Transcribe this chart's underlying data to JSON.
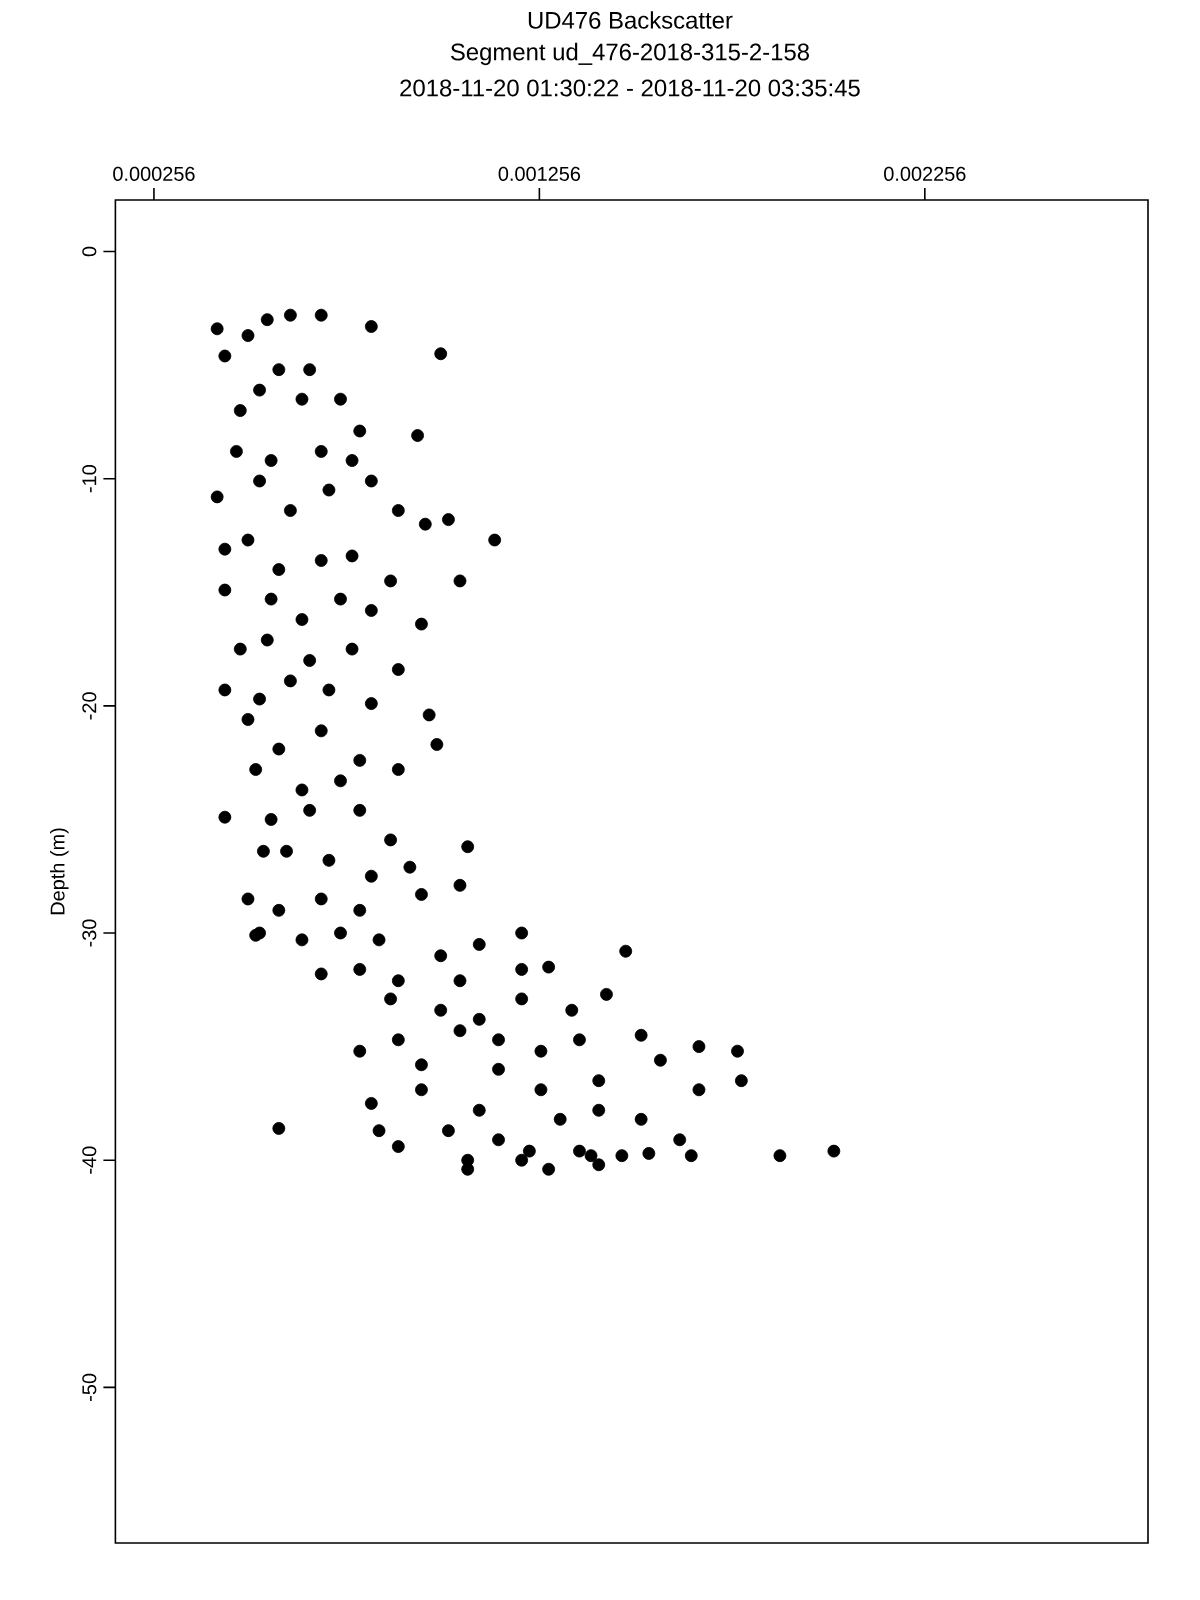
{
  "chart_data": {
    "type": "scatter",
    "title": "UD476 Backscatter",
    "subtitle": "Segment ud_476-2018-315-2-158",
    "annotations": [
      "2018-11-20 01:30:22 - 2018-11-20 03:35:45"
    ],
    "ylabel": "Depth (m)",
    "color": "#000000",
    "marker": "circle",
    "xlim": [
      0.000156,
      0.002835
    ],
    "ylim": [
      -56.85,
      2.27
    ],
    "xticks": [
      0.000256,
      0.001256,
      0.002256
    ],
    "yticks": [
      0,
      -10,
      -20,
      -30,
      -40,
      -50
    ],
    "x": [
      0.00042,
      0.00044,
      0.0005,
      0.00055,
      0.00061,
      0.00069,
      0.00082,
      0.001,
      0.00058,
      0.00066,
      0.00048,
      0.00053,
      0.00064,
      0.00074,
      0.00079,
      0.00094,
      0.00047,
      0.00056,
      0.00069,
      0.00077,
      0.00042,
      0.00053,
      0.00061,
      0.00071,
      0.00082,
      0.00089,
      0.00102,
      0.00114,
      0.00096,
      0.00044,
      0.0005,
      0.00058,
      0.00069,
      0.00077,
      0.00087,
      0.00105,
      0.00044,
      0.00056,
      0.00064,
      0.00074,
      0.00082,
      0.00095,
      0.00048,
      0.00055,
      0.00066,
      0.00077,
      0.00089,
      0.00044,
      0.00053,
      0.00061,
      0.00071,
      0.00082,
      0.0005,
      0.00058,
      0.00069,
      0.00079,
      0.00097,
      0.00099,
      0.00052,
      0.00064,
      0.00074,
      0.00089,
      0.00056,
      0.00066,
      0.00079,
      0.00087,
      0.00107,
      0.0006,
      0.00071,
      0.00082,
      0.00092,
      0.00058,
      0.00069,
      0.00079,
      0.00095,
      0.00105,
      0.00121,
      0.00064,
      0.00074,
      0.00084,
      0.001,
      0.0011,
      0.00053,
      0.00079,
      0.00089,
      0.00105,
      0.00121,
      0.00128,
      0.00069,
      0.00087,
      0.001,
      0.0011,
      0.00121,
      0.00134,
      0.00143,
      0.00148,
      0.00089,
      0.00105,
      0.00115,
      0.00126,
      0.00136,
      0.00152,
      0.00079,
      0.00095,
      0.00115,
      0.00126,
      0.00141,
      0.00157,
      0.00167,
      0.00177,
      0.00082,
      0.00095,
      0.0011,
      0.00131,
      0.00141,
      0.00152,
      0.00167,
      0.00178,
      0.00084,
      0.00102,
      0.00115,
      0.00123,
      0.00136,
      0.00141,
      0.00162,
      0.00058,
      0.00089,
      0.00107,
      0.00121,
      0.00147,
      0.00154,
      0.00165,
      0.00188,
      0.00202,
      0.00128,
      0.00107,
      0.00139,
      0.00044,
      0.00054,
      0.0005,
      0.00052
    ],
    "values": [
      -3.4,
      -4.6,
      -3.7,
      -3.0,
      -2.8,
      -2.8,
      -3.3,
      -4.5,
      -5.2,
      -5.2,
      -7.0,
      -6.1,
      -6.5,
      -6.5,
      -7.9,
      -8.1,
      -8.8,
      -9.2,
      -8.8,
      -9.2,
      -10.8,
      -10.1,
      -11.4,
      -10.5,
      -10.1,
      -11.4,
      -11.8,
      -12.7,
      -12.0,
      -13.1,
      -12.7,
      -14.0,
      -13.6,
      -13.4,
      -14.5,
      -14.5,
      -14.9,
      -15.3,
      -16.2,
      -15.3,
      -15.8,
      -16.4,
      -17.5,
      -17.1,
      -18.0,
      -17.5,
      -18.4,
      -19.3,
      -19.7,
      -18.9,
      -19.3,
      -19.9,
      -20.6,
      -21.9,
      -21.1,
      -22.4,
      -20.4,
      -21.7,
      -22.8,
      -23.7,
      -23.3,
      -22.8,
      -25.0,
      -24.6,
      -24.6,
      -25.9,
      -26.2,
      -26.4,
      -26.8,
      -27.5,
      -27.1,
      -29.0,
      -28.5,
      -29.0,
      -28.3,
      -27.9,
      -30.0,
      -30.3,
      -30.0,
      -30.3,
      -31.0,
      -30.5,
      -30.0,
      -31.6,
      -32.1,
      -32.1,
      -31.6,
      -31.5,
      -31.8,
      -32.9,
      -33.4,
      -33.8,
      -32.9,
      -33.4,
      -32.7,
      -30.8,
      -34.7,
      -34.3,
      -34.7,
      -35.2,
      -34.7,
      -34.5,
      -35.2,
      -35.8,
      -36.0,
      -36.9,
      -36.5,
      -35.6,
      -35.0,
      -35.2,
      -37.5,
      -36.9,
      -37.8,
      -38.2,
      -37.8,
      -38.2,
      -36.9,
      -36.5,
      -38.7,
      -38.7,
      -39.1,
      -39.6,
      -39.6,
      -40.2,
      -39.1,
      -38.6,
      -39.4,
      -40.0,
      -40.0,
      -39.8,
      -39.7,
      -39.8,
      -39.8,
      -39.6,
      -40.4,
      -40.4,
      -39.8,
      -24.9,
      -26.4,
      -28.5,
      -30.1
    ]
  }
}
